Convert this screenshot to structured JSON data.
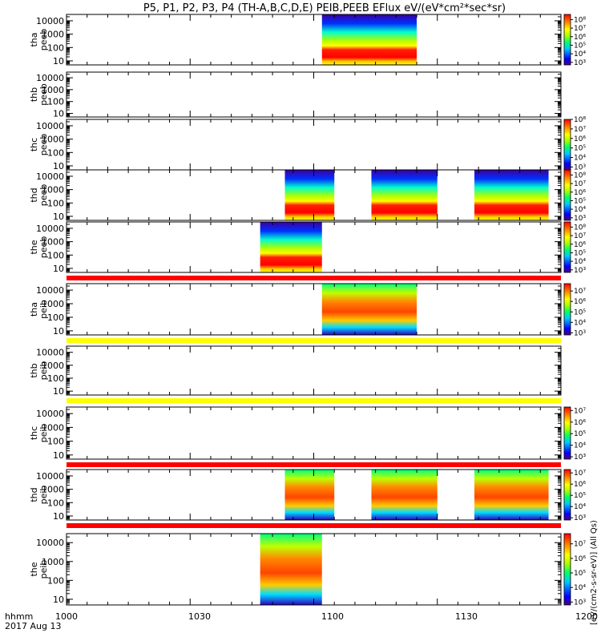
{
  "chart_data": {
    "type": "heatmap",
    "title": "P5, P1, P2, P3, P4 (TH-A,B,C,D,E) PEIB,PEEB EFlux eV/(eV*cm²*sec*sr)",
    "x_axis": {
      "range": [
        "10:00",
        "12:00"
      ],
      "tick_labels": [
        "1000",
        "1030",
        "1100",
        "1130",
        "1200"
      ],
      "label_line1": "hhmm",
      "label_line2": "2017 Aug 13"
    },
    "y_axis": {
      "scale": "log",
      "range": [
        5,
        30000
      ],
      "tick_labels": [
        "10",
        "100",
        "1000",
        "10000"
      ]
    },
    "colorbar_unit": "[eV/(cm2-s-sr-eV)] (All Qs)",
    "panels": [
      {
        "label1": "tha",
        "label2": "peeb",
        "species": "electron",
        "intervals": [
          [
            "11:02",
            "11:25"
          ]
        ],
        "colorbar": {
          "ticks": [
            "10³",
            "10⁴",
            "10⁵",
            "10⁶",
            "10⁷",
            "10⁸"
          ],
          "log_min": 2.7,
          "log_max": 8.6
        },
        "top_strip": null
      },
      {
        "label1": "thb",
        "label2": "peeb",
        "species": "electron",
        "intervals": [],
        "colorbar": null,
        "top_strip": null
      },
      {
        "label1": "thc",
        "label2": "peeb",
        "species": "electron",
        "intervals": [],
        "colorbar": {
          "ticks": [
            "10³",
            "10⁴",
            "10⁵",
            "10⁶",
            "10⁷",
            "10⁸"
          ],
          "log_min": 2.7,
          "log_max": 8.0
        },
        "top_strip": null
      },
      {
        "label1": "thd",
        "label2": "peeb",
        "species": "electron",
        "intervals": [
          [
            "10:53",
            "11:05"
          ],
          [
            "11:14",
            "11:30"
          ],
          [
            "11:39",
            "11:57"
          ]
        ],
        "colorbar": {
          "ticks": [
            "10³",
            "10⁴",
            "10⁵",
            "10⁶",
            "10⁷",
            "10⁸"
          ],
          "log_min": 2.7,
          "log_max": 8.6
        },
        "top_strip": null
      },
      {
        "label1": "the",
        "label2": "peeb",
        "species": "electron",
        "intervals": [
          [
            "10:47",
            "11:02"
          ]
        ],
        "colorbar": {
          "ticks": [
            "10³",
            "10⁴",
            "10⁵",
            "10⁶",
            "10⁷",
            "10⁸"
          ],
          "log_min": 2.7,
          "log_max": 8.6
        },
        "top_strip": "#ff0000"
      },
      {
        "label1": "tha",
        "label2": "peib",
        "species": "ion",
        "intervals": [
          [
            "11:02",
            "11:25"
          ]
        ],
        "colorbar": {
          "ticks": [
            "10³",
            "10⁴",
            "10⁵",
            "10⁶",
            "10⁷"
          ],
          "log_min": 2.8,
          "log_max": 7.7
        },
        "top_strip": "#ffff00"
      },
      {
        "label1": "thb",
        "label2": "peib",
        "species": "ion",
        "intervals": [],
        "colorbar": null,
        "top_strip": "#ffff00"
      },
      {
        "label1": "thc",
        "label2": "peib",
        "species": "ion",
        "intervals": [],
        "colorbar": {
          "ticks": [
            "10³",
            "10⁴",
            "10⁵",
            "10⁶",
            "10⁷"
          ],
          "log_min": 2.8,
          "log_max": 7.3
        },
        "top_strip": "#ff0000"
      },
      {
        "label1": "thd",
        "label2": "peib",
        "species": "ion",
        "intervals": [
          [
            "10:53",
            "11:05"
          ],
          [
            "11:14",
            "11:30"
          ],
          [
            "11:39",
            "11:57"
          ]
        ],
        "colorbar": {
          "ticks": [
            "10³",
            "10⁴",
            "10⁵",
            "10⁶",
            "10⁷"
          ],
          "log_min": 2.8,
          "log_max": 7.3
        },
        "top_strip": "#ff0000"
      },
      {
        "label1": "the",
        "label2": "peib",
        "species": "ion",
        "intervals": [
          [
            "10:47",
            "11:02"
          ]
        ],
        "colorbar": {
          "ticks": [
            "10³",
            "10⁴",
            "10⁵",
            "10⁶",
            "10⁷"
          ],
          "log_min": 2.8,
          "log_max": 7.7
        },
        "top_strip": null
      }
    ]
  }
}
